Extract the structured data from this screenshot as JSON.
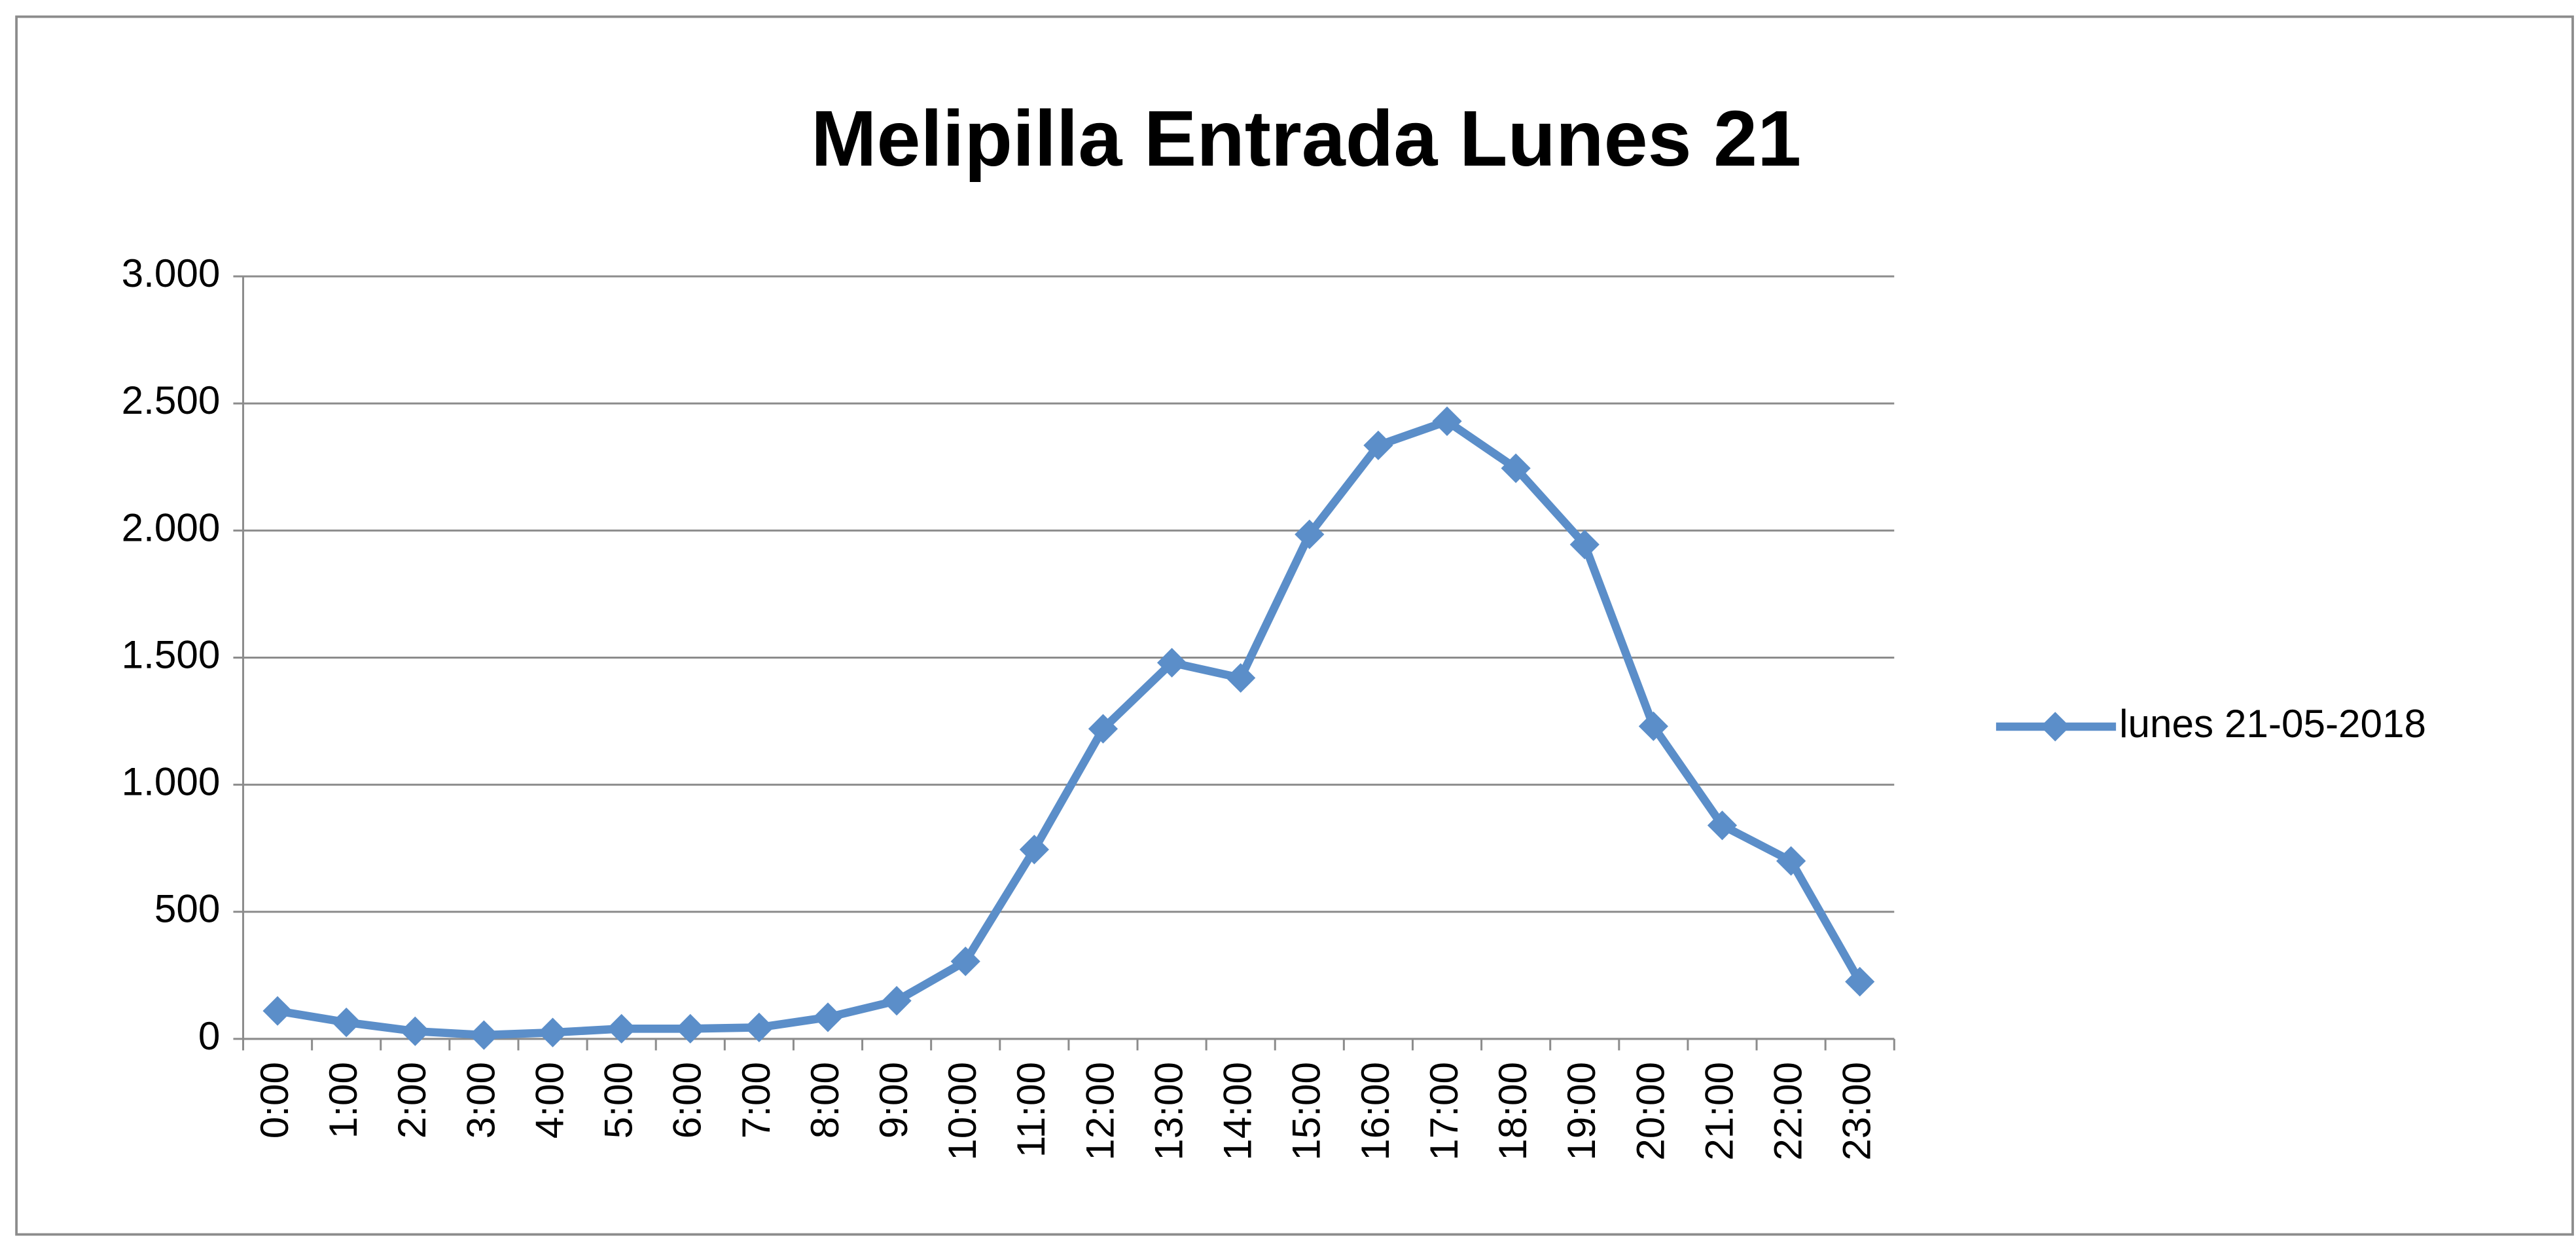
{
  "chart_data": {
    "type": "line",
    "title": "Melipilla Entrada Lunes 21",
    "categories": [
      "0:00",
      "1:00",
      "2:00",
      "3:00",
      "4:00",
      "5:00",
      "6:00",
      "7:00",
      "8:00",
      "9:00",
      "10:00",
      "11:00",
      "12:00",
      "13:00",
      "14:00",
      "15:00",
      "16:00",
      "17:00",
      "18:00",
      "19:00",
      "20:00",
      "21:00",
      "22:00",
      "23:00"
    ],
    "series": [
      {
        "name": "lunes 21-05-2018",
        "color": "#5b8ec9",
        "values": [
          110,
          65,
          30,
          15,
          25,
          40,
          40,
          45,
          85,
          150,
          305,
          745,
          1220,
          1480,
          1420,
          1985,
          2335,
          2430,
          2245,
          1945,
          1230,
          840,
          700,
          225
        ]
      }
    ],
    "ylim": [
      0,
      3000
    ],
    "yticks": [
      0,
      500,
      {
        "value": 1000,
        "label": "1.000"
      },
      {
        "value": 1500,
        "label": "1.500"
      },
      {
        "value": 2000,
        "label": "2.000"
      },
      {
        "value": 2500,
        "label": "2.500"
      },
      {
        "value": 3000,
        "label": "3.000"
      }
    ],
    "grid": true,
    "legend": "right"
  }
}
